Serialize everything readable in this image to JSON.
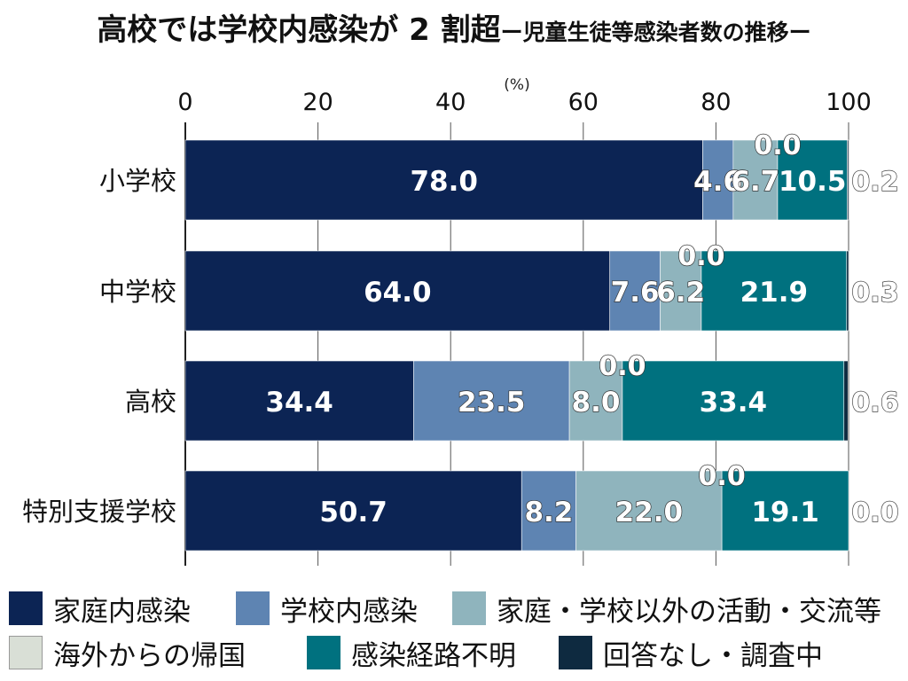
{
  "title": {
    "main": "高校では学校内感染が 2 割超",
    "sub": "ー児童生徒等感染者数の推移ー"
  },
  "chart_data": {
    "type": "bar",
    "orientation": "horizontal",
    "stacked": true,
    "unit_label": "(%)",
    "xlim": [
      0,
      100
    ],
    "xticks": [
      0,
      20,
      40,
      60,
      80,
      100
    ],
    "grid": true,
    "legend_position": "bottom",
    "categories": [
      "小学校",
      "中学校",
      "高校",
      "特別支援学校"
    ],
    "series": [
      {
        "name": "家庭内感染",
        "values": [
          78.0,
          64.0,
          34.4,
          50.7
        ],
        "labels": [
          "78.0",
          "64.0",
          "34.4",
          "50.7"
        ],
        "color": "#0c2454"
      },
      {
        "name": "学校内感染",
        "values": [
          4.6,
          7.6,
          23.5,
          8.2
        ],
        "labels": [
          "4.6",
          "7.6",
          "23.5",
          "8.2"
        ],
        "color": "#5e84b2"
      },
      {
        "name": "家庭・学校以外の活動・交流等",
        "values": [
          6.7,
          6.2,
          8.0,
          22.0
        ],
        "labels": [
          "6.7",
          "6.2",
          "8.0",
          "22.0"
        ],
        "color": "#8fb4bd"
      },
      {
        "name": "海外からの帰国",
        "values": [
          0.0,
          0.0,
          0.0,
          0.0
        ],
        "labels": [
          "0.0",
          "0.0",
          "0.0",
          "0.0"
        ],
        "color": "#d9dfd6"
      },
      {
        "name": "感染経路不明",
        "values": [
          10.5,
          21.9,
          33.4,
          19.1
        ],
        "labels": [
          "10.5",
          "21.9",
          "33.4",
          "19.1"
        ],
        "color": "#00717f"
      },
      {
        "name": "回答なし・調査中",
        "values": [
          0.2,
          0.3,
          0.6,
          0.0
        ],
        "labels": [
          "0.2",
          "0.3",
          "0.6",
          "0.0"
        ],
        "color": "#0e2a40"
      }
    ]
  }
}
